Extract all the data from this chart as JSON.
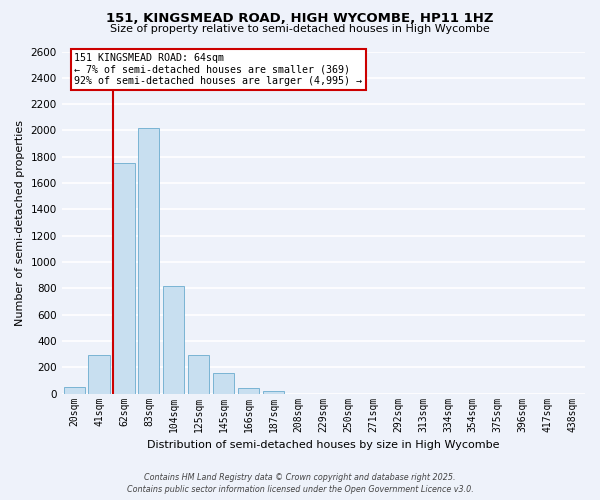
{
  "title": "151, KINGSMEAD ROAD, HIGH WYCOMBE, HP11 1HZ",
  "subtitle": "Size of property relative to semi-detached houses in High Wycombe",
  "xlabel": "Distribution of semi-detached houses by size in High Wycombe",
  "ylabel": "Number of semi-detached properties",
  "bar_labels": [
    "20sqm",
    "41sqm",
    "62sqm",
    "83sqm",
    "104sqm",
    "125sqm",
    "145sqm",
    "166sqm",
    "187sqm",
    "208sqm",
    "229sqm",
    "250sqm",
    "271sqm",
    "292sqm",
    "313sqm",
    "334sqm",
    "354sqm",
    "375sqm",
    "396sqm",
    "417sqm",
    "438sqm"
  ],
  "bar_values": [
    50,
    290,
    1750,
    2020,
    820,
    290,
    155,
    45,
    20,
    0,
    0,
    0,
    0,
    0,
    0,
    0,
    0,
    0,
    0,
    0,
    0
  ],
  "bar_color": "#c8dff0",
  "bar_edge_color": "#7ab4d4",
  "vline_color": "#cc0000",
  "annotation_title": "151 KINGSMEAD ROAD: 64sqm",
  "annotation_line2": "← 7% of semi-detached houses are smaller (369)",
  "annotation_line3": "92% of semi-detached houses are larger (4,995) →",
  "annotation_box_color": "white",
  "annotation_box_edge": "#cc0000",
  "ylim": [
    0,
    2600
  ],
  "yticks": [
    0,
    200,
    400,
    600,
    800,
    1000,
    1200,
    1400,
    1600,
    1800,
    2000,
    2200,
    2400,
    2600
  ],
  "footer_line1": "Contains HM Land Registry data © Crown copyright and database right 2025.",
  "footer_line2": "Contains public sector information licensed under the Open Government Licence v3.0.",
  "bg_color": "#eef2fa",
  "grid_color": "#ffffff"
}
